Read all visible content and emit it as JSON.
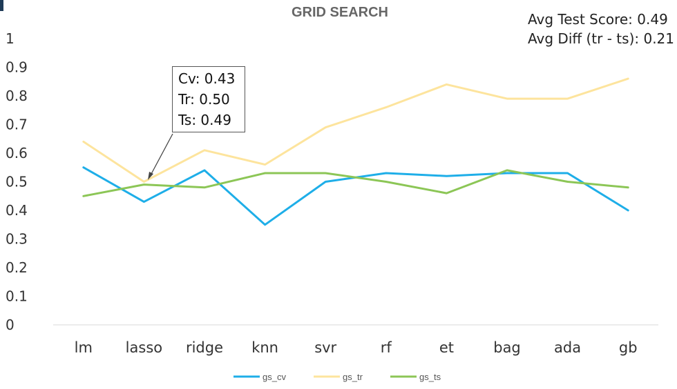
{
  "chart_data": {
    "type": "line",
    "title": "GRID SEARCH",
    "categories": [
      "lm",
      "lasso",
      "ridge",
      "knn",
      "svr",
      "rf",
      "et",
      "bag",
      "ada",
      "gb"
    ],
    "series": [
      {
        "name": "gs_cv",
        "color": "#1eaee8",
        "values": [
          0.55,
          0.43,
          0.54,
          0.35,
          0.5,
          0.53,
          0.52,
          0.53,
          0.53,
          0.4
        ]
      },
      {
        "name": "gs_tr",
        "color": "#fde49d",
        "values": [
          0.64,
          0.5,
          0.61,
          0.56,
          0.69,
          0.76,
          0.84,
          0.79,
          0.79,
          0.86
        ]
      },
      {
        "name": "gs_ts",
        "color": "#8cc656",
        "values": [
          0.45,
          0.49,
          0.48,
          0.53,
          0.53,
          0.5,
          0.46,
          0.54,
          0.5,
          0.48
        ]
      }
    ],
    "yticks": [
      "0",
      "0.1",
      "0.2",
      "0.3",
      "0.4",
      "0.5",
      "0.6",
      "0.7",
      "0.8",
      "0.9",
      "1"
    ],
    "ylim": [
      0,
      1
    ],
    "xlabel": "",
    "ylabel": "",
    "grid": false,
    "legend": "bottom-center",
    "annotation": {
      "category": "lasso",
      "value": 0.5,
      "lines": [
        "Cv: 0.43",
        "Tr: 0.50",
        "Ts: 0.49"
      ]
    }
  },
  "summary": {
    "avg_test": "Avg Test Score: 0.49",
    "avg_diff": "Avg Diff (tr - ts): 0.21"
  }
}
